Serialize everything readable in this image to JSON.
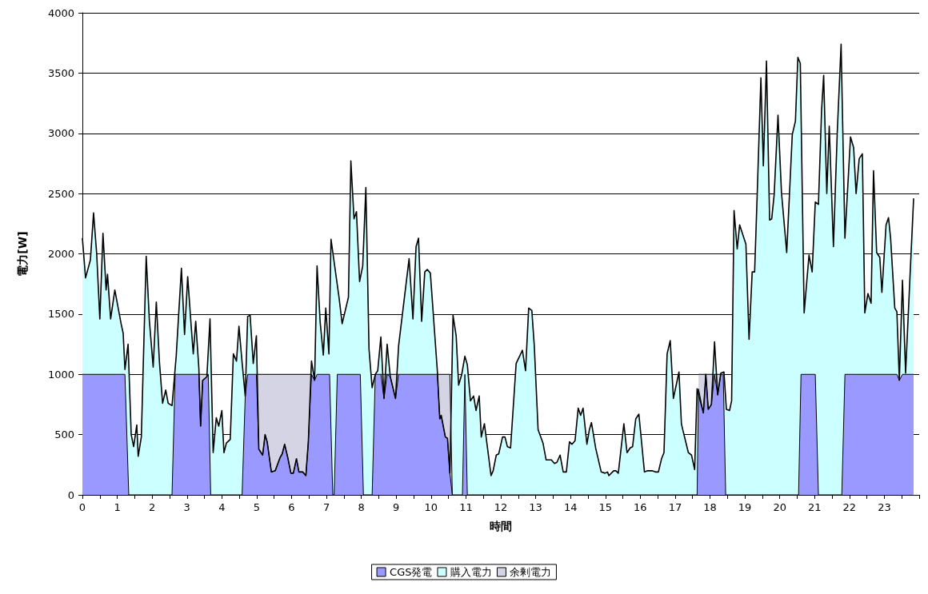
{
  "chart_data": {
    "type": "area",
    "xlabel": "時間",
    "ylabel": "電力[W]",
    "xlim": [
      0,
      24
    ],
    "ylim": [
      0,
      4000
    ],
    "xticks": [
      0,
      {
        "value": 0.5,
        "label": null
      },
      1,
      {
        "value": 1.5,
        "label": null
      },
      2,
      {
        "value": 2.5,
        "label": null
      },
      3,
      {
        "value": 3.5,
        "label": null
      },
      4,
      {
        "value": 4.5,
        "label": null
      },
      5,
      {
        "value": 5.5,
        "label": null
      },
      6,
      {
        "value": 6.5,
        "label": null
      },
      7,
      {
        "value": 7.5,
        "label": null
      },
      8,
      {
        "value": 8.5,
        "label": null
      },
      9,
      {
        "value": 9.5,
        "label": null
      },
      10,
      {
        "value": 10.5,
        "label": null
      },
      11,
      {
        "value": 11.5,
        "label": null
      },
      12,
      {
        "value": 12.5,
        "label": null
      },
      13,
      {
        "value": 13.5,
        "label": null
      },
      14,
      {
        "value": 14.5,
        "label": null
      },
      15,
      {
        "value": 15.5,
        "label": null
      },
      16,
      {
        "value": 16.5,
        "label": null
      },
      17,
      {
        "value": 17.5,
        "label": null
      },
      18,
      {
        "value": 18.5,
        "label": null
      },
      19,
      {
        "value": 19.5,
        "label": null
      },
      20,
      {
        "value": 20.5,
        "label": null
      },
      21,
      {
        "value": 21.5,
        "label": null
      },
      22,
      {
        "value": 22.5,
        "label": null
      },
      23,
      {
        "value": 23.5,
        "label": null
      }
    ],
    "yticks": [
      0,
      500,
      1000,
      1500,
      2000,
      2500,
      3000,
      3500,
      4000
    ],
    "grid": "y",
    "legend": "bottom",
    "marker": "none",
    "series": [
      {
        "name": "CGS発電",
        "color": "#9999ff",
        "x": [
          0,
          1.22,
          1.33,
          2.57,
          2.66,
          3.34,
          3.39,
          3.45,
          3.57,
          3.61,
          3.68,
          4.58,
          4.67,
          4.74,
          4.99,
          5.06,
          5.17,
          5.24,
          5.3,
          5.42,
          5.53,
          5.67,
          5.73,
          5.8,
          5.89,
          5.98,
          6.05,
          6.14,
          6.21,
          6.32,
          6.41,
          6.48,
          6.57,
          6.66,
          6.73,
          7.09,
          7.18,
          7.22,
          7.31,
          7.97,
          8.06,
          8.31,
          8.4,
          8.56,
          8.65,
          8.74,
          8.83,
          8.98,
          9.07,
          10.18,
          10.25,
          10.29,
          10.41,
          10.47,
          10.54,
          10.61,
          10.9,
          10.97,
          11.04,
          17.63,
          17.67,
          17.81,
          17.88,
          17.95,
          18.04,
          18.13,
          18.22,
          18.31,
          18.38,
          18.45,
          20.54,
          20.61,
          21.02,
          21.11,
          21.78,
          21.87,
          23.36,
          23.43,
          23.52,
          23.84
        ],
        "values": [
          1000,
          1000,
          0,
          0,
          1000,
          1000,
          570,
          950,
          980,
          1000,
          0,
          0,
          820,
          1000,
          1000,
          380,
          330,
          500,
          440,
          190,
          200,
          310,
          340,
          420,
          310,
          180,
          180,
          300,
          190,
          190,
          160,
          440,
          1000,
          950,
          1000,
          1000,
          0,
          0,
          1000,
          1000,
          0,
          0,
          1000,
          1000,
          800,
          1000,
          980,
          800,
          1000,
          1000,
          630,
          660,
          480,
          470,
          180,
          0,
          0,
          1000,
          0,
          0,
          880,
          680,
          1000,
          710,
          750,
          1000,
          830,
          1000,
          1000,
          0,
          0,
          1000,
          1000,
          0,
          0,
          1000,
          1000,
          950,
          1000,
          1000
        ]
      },
      {
        "name": "購入電力",
        "color": "#ccffff",
        "x": [
          0,
          0.09,
          0.23,
          0.32,
          0.41,
          0.5,
          0.59,
          0.68,
          0.72,
          0.81,
          0.93,
          1.02,
          1.11,
          1.17,
          1.22,
          1.31,
          1.4,
          1.47,
          1.56,
          1.6,
          1.69,
          1.83,
          1.92,
          2.03,
          2.12,
          2.21,
          2.3,
          2.39,
          2.46,
          2.57,
          2.69,
          2.84,
          2.93,
          3.02,
          3.12,
          3.18,
          3.25,
          3.34,
          3.39,
          3.45,
          3.57,
          3.66,
          3.75,
          3.84,
          3.91,
          4.0,
          4.06,
          4.13,
          4.24,
          4.33,
          4.42,
          4.49,
          4.58,
          4.67,
          4.74,
          4.81,
          4.9,
          4.99,
          5.06,
          5.17,
          5.24,
          5.3,
          5.42,
          5.53,
          5.67,
          5.73,
          5.8,
          5.89,
          5.98,
          6.05,
          6.14,
          6.21,
          6.32,
          6.41,
          6.48,
          6.57,
          6.66,
          6.73,
          6.82,
          6.91,
          6.98,
          7.07,
          7.13,
          7.36,
          7.45,
          7.63,
          7.7,
          7.79,
          7.86,
          7.95,
          8.04,
          8.13,
          8.22,
          8.31,
          8.4,
          8.47,
          8.56,
          8.65,
          8.74,
          8.83,
          8.98,
          9.07,
          9.37,
          9.48,
          9.57,
          9.64,
          9.73,
          9.82,
          9.89,
          9.98,
          10.18,
          10.25,
          10.29,
          10.41,
          10.47,
          10.54,
          10.63,
          10.72,
          10.79,
          10.88,
          10.97,
          11.04,
          11.13,
          11.22,
          11.29,
          11.38,
          11.44,
          11.53,
          11.72,
          11.78,
          11.87,
          11.94,
          12.05,
          12.12,
          12.19,
          12.28,
          12.44,
          12.62,
          12.71,
          12.8,
          12.89,
          12.96,
          13.07,
          13.21,
          13.3,
          13.45,
          13.54,
          13.61,
          13.7,
          13.79,
          13.88,
          13.97,
          14.04,
          14.13,
          14.22,
          14.29,
          14.36,
          14.47,
          14.54,
          14.6,
          14.72,
          14.88,
          14.99,
          15.06,
          15.1,
          15.24,
          15.3,
          15.37,
          15.53,
          15.62,
          15.71,
          15.78,
          15.87,
          15.96,
          16.12,
          16.21,
          16.34,
          16.43,
          16.52,
          16.61,
          16.68,
          16.77,
          16.86,
          16.95,
          17.11,
          17.18,
          17.22,
          17.38,
          17.47,
          17.56,
          17.63,
          17.81,
          17.88,
          17.95,
          18.04,
          18.13,
          18.22,
          18.31,
          18.4,
          18.47,
          18.56,
          18.62,
          18.69,
          18.78,
          18.85,
          19.03,
          19.12,
          19.21,
          19.28,
          19.35,
          19.46,
          19.53,
          19.62,
          19.71,
          19.77,
          19.84,
          19.95,
          20.05,
          20.2,
          20.36,
          20.45,
          20.52,
          20.59,
          20.7,
          20.84,
          20.93,
          21.02,
          21.11,
          21.2,
          21.26,
          21.35,
          21.42,
          21.54,
          21.65,
          21.76,
          21.87,
          22.03,
          22.12,
          22.19,
          22.28,
          22.37,
          22.44,
          22.53,
          22.62,
          22.69,
          22.78,
          22.87,
          22.93,
          23.05,
          23.12,
          23.18,
          23.3,
          23.36,
          23.43,
          23.52,
          23.61,
          23.72,
          23.84
        ],
        "values": [
          2130,
          1800,
          1950,
          2340,
          2000,
          1460,
          2170,
          1700,
          1830,
          1460,
          1700,
          1560,
          1420,
          1340,
          1040,
          1250,
          500,
          400,
          580,
          320,
          480,
          1980,
          1450,
          1060,
          1600,
          1100,
          760,
          870,
          760,
          740,
          1150,
          1880,
          1330,
          1810,
          1400,
          1170,
          1440,
          1050,
          570,
          950,
          980,
          1460,
          350,
          640,
          570,
          700,
          350,
          430,
          460,
          1170,
          1110,
          1400,
          1100,
          820,
          1480,
          1490,
          1090,
          1320,
          380,
          330,
          500,
          440,
          190,
          200,
          310,
          340,
          420,
          310,
          180,
          180,
          300,
          190,
          190,
          160,
          440,
          1110,
          950,
          1900,
          1430,
          1160,
          1550,
          1170,
          2120,
          1640,
          1420,
          1640,
          2770,
          2290,
          2350,
          1770,
          1900,
          2550,
          1210,
          890,
          1000,
          1030,
          1310,
          800,
          1250,
          980,
          800,
          1240,
          1960,
          1460,
          2060,
          2130,
          1440,
          1850,
          1870,
          1840,
          1030,
          630,
          660,
          480,
          470,
          180,
          1490,
          1320,
          910,
          1000,
          1150,
          1080,
          780,
          820,
          700,
          820,
          480,
          590,
          160,
          200,
          330,
          340,
          480,
          480,
          400,
          390,
          1090,
          1200,
          1030,
          1550,
          1530,
          1240,
          540,
          430,
          290,
          290,
          260,
          270,
          330,
          190,
          190,
          440,
          420,
          450,
          720,
          660,
          720,
          420,
          540,
          600,
          390,
          190,
          180,
          190,
          160,
          200,
          200,
          180,
          590,
          350,
          390,
          400,
          630,
          670,
          190,
          200,
          200,
          190,
          190,
          300,
          350,
          1170,
          1280,
          800,
          1020,
          590,
          540,
          350,
          330,
          210,
          880,
          680,
          1000,
          710,
          750,
          1270,
          830,
          1010,
          1020,
          710,
          700,
          780,
          2360,
          2040,
          2240,
          2080,
          1290,
          1850,
          1850,
          2460,
          3460,
          2730,
          3600,
          2280,
          2290,
          2490,
          3150,
          2510,
          2010,
          2990,
          3100,
          3630,
          3580,
          1510,
          1990,
          1850,
          2430,
          2410,
          3190,
          3480,
          2500,
          3060,
          2060,
          3010,
          3740,
          2130,
          2970,
          2880,
          2500,
          2790,
          2830,
          1510,
          1670,
          1590,
          2690,
          2010,
          1970,
          1680,
          2240,
          2300,
          2130,
          1550,
          1520,
          950,
          1780,
          1010,
          1710,
          2460
        ]
      },
      {
        "name": "余剰電力",
        "color": "#d4d4e4",
        "x": [
          3.34,
          3.61,
          3.65,
          4.99,
          6.57,
          6.6,
          8.56,
          9.07,
          9.1,
          10.18,
          10.54,
          10.61,
          10.65,
          17.67,
          18.31
        ],
        "values": [
          1000,
          1000,
          null,
          1000,
          1000,
          null,
          1000,
          1000,
          null,
          1000,
          1000,
          0,
          null,
          1000,
          1000
        ]
      }
    ]
  }
}
